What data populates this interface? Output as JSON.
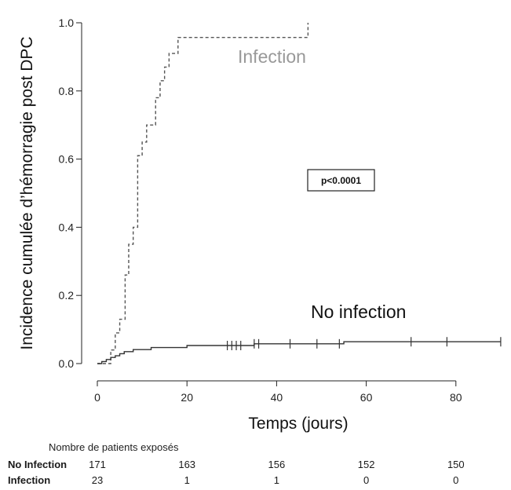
{
  "chart_data": {
    "type": "line",
    "subtype": "step",
    "title": "",
    "xlabel": "Temps (jours)",
    "ylabel": "Incidence cumulée d’hémorragie post DPC",
    "xlim": [
      0,
      90
    ],
    "ylim": [
      0,
      1.0
    ],
    "xticks": [
      0,
      20,
      40,
      60,
      80
    ],
    "yticks": [
      0.0,
      0.2,
      0.4,
      0.6,
      0.8,
      1.0
    ],
    "xtick_labels": [
      "0",
      "20",
      "40",
      "60",
      "80"
    ],
    "ytick_labels": [
      "0.0",
      "0.2",
      "0.4",
      "0.6",
      "0.8",
      "1.0"
    ],
    "grid": false,
    "annotation": "p<0.0001",
    "series": [
      {
        "name": "Infection",
        "style": "dashed",
        "color": "#555555",
        "label_color": "#999999",
        "steps": [
          [
            0,
            0
          ],
          [
            3,
            0.04
          ],
          [
            4,
            0.09
          ],
          [
            5,
            0.13
          ],
          [
            6,
            0.13
          ],
          [
            6.2,
            0.26
          ],
          [
            7,
            0.35
          ],
          [
            8,
            0.4
          ],
          [
            9,
            0.61
          ],
          [
            10,
            0.65
          ],
          [
            11,
            0.7
          ],
          [
            12,
            0.7
          ],
          [
            13,
            0.78
          ],
          [
            14,
            0.83
          ],
          [
            15,
            0.87
          ],
          [
            16,
            0.91
          ],
          [
            17,
            0.91
          ],
          [
            18,
            0.957
          ],
          [
            47,
            1.0
          ]
        ],
        "end_x": 47
      },
      {
        "name": "No infection",
        "style": "solid",
        "color": "#333333",
        "label_color": "#111111",
        "steps": [
          [
            0,
            0
          ],
          [
            1,
            0.006
          ],
          [
            2,
            0.012
          ],
          [
            3,
            0.018
          ],
          [
            4,
            0.023
          ],
          [
            5,
            0.029
          ],
          [
            6,
            0.035
          ],
          [
            8,
            0.041
          ],
          [
            12,
            0.047
          ],
          [
            20,
            0.053
          ],
          [
            35,
            0.058
          ],
          [
            55,
            0.064
          ]
        ],
        "end_x": 90,
        "censor_marks": [
          29,
          30,
          31,
          32,
          35,
          36,
          43,
          49,
          54,
          70,
          78,
          90
        ]
      }
    ]
  },
  "risk_table": {
    "title": "Nombre de patients exposés",
    "times": [
      0,
      20,
      40,
      60,
      80
    ],
    "rows": [
      {
        "label": "No Infection",
        "values": [
          "171",
          "163",
          "156",
          "152",
          "150"
        ]
      },
      {
        "label": "Infection",
        "values": [
          "23",
          "1",
          "1",
          "0",
          "0"
        ]
      }
    ]
  }
}
